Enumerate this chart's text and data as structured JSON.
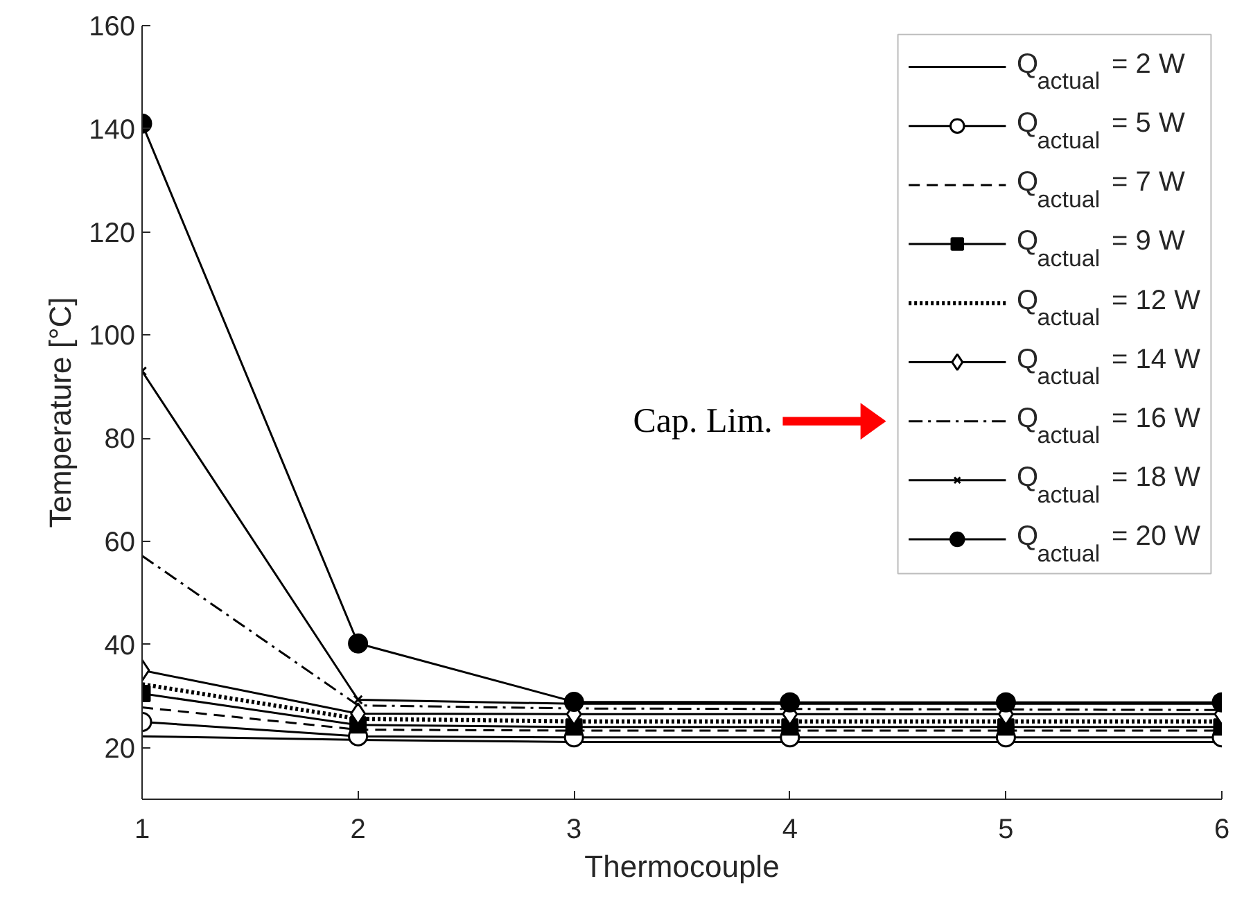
{
  "chart_data": {
    "type": "line",
    "xlabel": "Thermocouple",
    "ylabel": "Temperature [°C]",
    "x": [
      1,
      2,
      3,
      4,
      5,
      6
    ],
    "xlim": [
      1,
      6
    ],
    "xticks": [
      1,
      2,
      3,
      4,
      5,
      6
    ],
    "ylim": [
      10,
      160
    ],
    "yticks": [
      20,
      40,
      60,
      80,
      100,
      120,
      140,
      160
    ],
    "grid": false,
    "legend": "top right",
    "annotations": [
      "Cap. Lim."
    ],
    "series": [
      {
        "name": "Q$_{actual}$ = 2 W",
        "color": "#000000",
        "line_style": "solid",
        "marker": "none",
        "values": [
          22.2,
          21.5,
          21.1,
          21.1,
          21.1,
          21.1
        ]
      },
      {
        "name": "Q$_{actual}$ = 5 W",
        "color": "#000000",
        "line_style": "solid",
        "marker": "circle",
        "values": [
          25.0,
          22.2,
          22.0,
          22.0,
          22.0,
          22.0
        ]
      },
      {
        "name": "Q$_{actual}$ = 7 W",
        "color": "#000000",
        "line_style": "dashed",
        "marker": "none",
        "values": [
          27.8,
          23.5,
          23.3,
          23.3,
          23.3,
          23.3
        ]
      },
      {
        "name": "Q$_{actual}$ = 9 W",
        "color": "#000000",
        "line_style": "solid",
        "marker": "square",
        "values": [
          30.5,
          24.4,
          24.0,
          24.0,
          24.0,
          24.0
        ]
      },
      {
        "name": "Q$_{actual}$ = 12 W",
        "color": "#000000",
        "line_style": "dotted",
        "marker": "none",
        "values": [
          32.3,
          25.6,
          25.1,
          25.1,
          25.1,
          25.1
        ]
      },
      {
        "name": "Q$_{actual}$ = 14 W",
        "color": "#000000",
        "line_style": "solid",
        "marker": "diamond",
        "values": [
          35.0,
          26.6,
          26.5,
          26.5,
          26.5,
          26.5
        ]
      },
      {
        "name": "Q$_{actual}$ = 16 W",
        "color": "#000000",
        "line_style": "dashdot",
        "marker": "none",
        "values": [
          57.2,
          28.2,
          27.6,
          27.5,
          27.4,
          27.3
        ]
      },
      {
        "name": "Q$_{actual}$ = 18 W",
        "color": "#000000",
        "line_style": "solid",
        "marker": "cross",
        "values": [
          93,
          29.3,
          28.5,
          28.5,
          28.5,
          28.5
        ]
      },
      {
        "name": "Q$_{actual}$ = 20 W",
        "color": "#000000",
        "line_style": "solid",
        "marker": "circle",
        "values": [
          141,
          40.2,
          28.9,
          28.8,
          28.8,
          28.8
        ]
      }
    ]
  }
}
